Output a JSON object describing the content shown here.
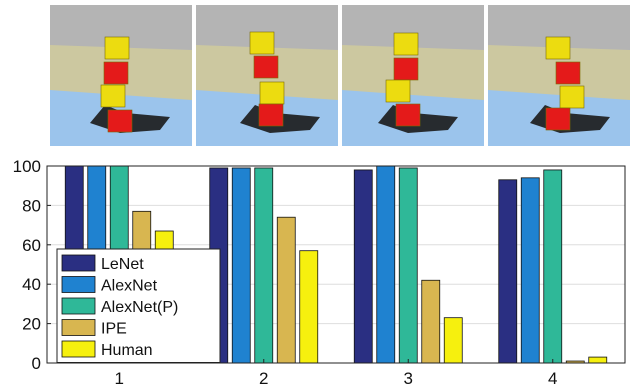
{
  "scene_colors": {
    "sky": "#b4b4b4",
    "wall": "#ccc8a0",
    "floor": "#9bc4ec",
    "red_block": "#e41a1a",
    "yellow_block": "#ecdc10",
    "shadow": "#1b1b1b"
  },
  "chart_data": {
    "type": "bar",
    "categories": [
      "1",
      "2",
      "3",
      "4"
    ],
    "series": [
      {
        "name": "LeNet",
        "color": "#2a2f82",
        "values": [
          100,
          99,
          98,
          93
        ]
      },
      {
        "name": "AlexNet",
        "color": "#1f82d0",
        "values": [
          100,
          99,
          100,
          94
        ]
      },
      {
        "name": "AlexNet(P)",
        "color": "#2fb898",
        "values": [
          100,
          99,
          99,
          98
        ]
      },
      {
        "name": "IPE",
        "color": "#d8b650",
        "values": [
          77,
          74,
          42,
          1
        ]
      },
      {
        "name": "Human",
        "color": "#f6f00e",
        "values": [
          67,
          57,
          23,
          3
        ]
      }
    ],
    "ylim": [
      0,
      100
    ],
    "yticks": [
      0,
      20,
      40,
      60,
      80,
      100
    ],
    "grid": true,
    "legend_position": "bottom-left",
    "title": "",
    "xlabel": "",
    "ylabel": ""
  }
}
